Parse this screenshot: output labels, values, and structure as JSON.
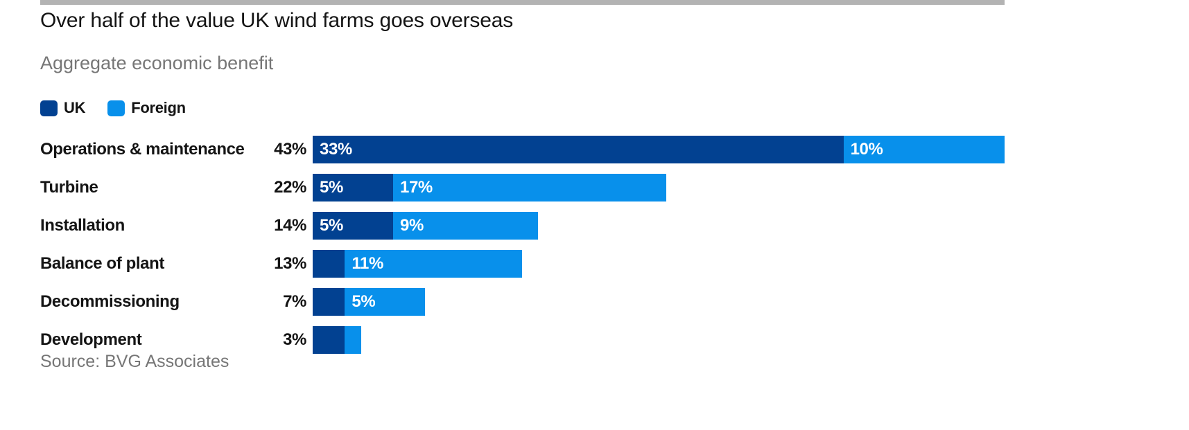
{
  "header": {
    "title": "Over half of the value UK wind farms goes overseas",
    "subtitle": "Aggregate economic benefit"
  },
  "legend": [
    {
      "label": "UK",
      "color": "#024191"
    },
    {
      "label": "Foreign",
      "color": "#0890eb"
    }
  ],
  "source": "Source: BVG Associates",
  "colors": {
    "uk_bar": "#024191",
    "foreign_bar": "#0890eb",
    "top_rule": "#b3b3b3",
    "title_text": "#141414",
    "muted_text": "#767676",
    "bar_value_text": "#ffffff"
  },
  "chart_data": {
    "type": "bar",
    "orientation": "horizontal",
    "stacked": true,
    "title": "Over half of the value UK wind farms goes overseas",
    "subtitle": "Aggregate economic benefit",
    "xlabel": "",
    "ylabel": "",
    "units": "%",
    "xlim": [
      0,
      43
    ],
    "grid": false,
    "legend_position": "top",
    "categories": [
      "Operations & maintenance",
      "Turbine",
      "Installation",
      "Balance of plant",
      "Decommissioning",
      "Development"
    ],
    "totals": [
      43,
      22,
      14,
      13,
      7,
      3
    ],
    "total_labels": [
      "43%",
      "22%",
      "14%",
      "13%",
      "7%",
      "3%"
    ],
    "series": [
      {
        "name": "UK",
        "color": "#024191",
        "values": [
          33,
          5,
          5,
          2,
          2,
          2
        ],
        "labels": [
          "33%",
          "5%",
          "5%",
          "",
          "",
          ""
        ]
      },
      {
        "name": "Foreign",
        "color": "#0890eb",
        "values": [
          10,
          17,
          9,
          11,
          5,
          1
        ],
        "labels": [
          "10%",
          "17%",
          "9%",
          "11%",
          "5%",
          ""
        ]
      }
    ]
  }
}
